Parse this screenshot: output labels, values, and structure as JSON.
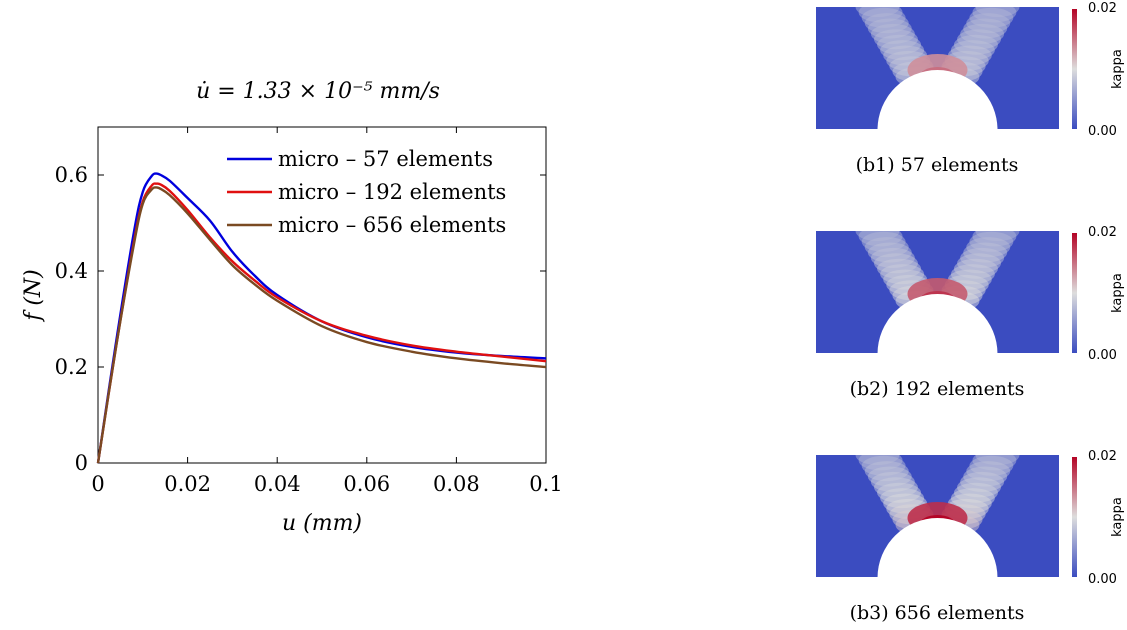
{
  "chart_data": [
    {
      "type": "line",
      "title": "u̇ = 1.33 × 10⁻⁵ mm/s",
      "xlabel": "u (mm)",
      "ylabel": "f (N)",
      "xlim": [
        0,
        0.1
      ],
      "ylim": [
        0,
        0.7
      ],
      "xticks": [
        "0",
        "0.02",
        "0.04",
        "0.06",
        "0.08",
        "0.1"
      ],
      "yticks": [
        "0",
        "0.2",
        "0.4",
        "0.6"
      ],
      "legend_position": "top-right",
      "grid": false,
      "series": [
        {
          "name": "micro – 57 elements",
          "color": "#0000dd",
          "x": [
            0,
            0.004,
            0.008,
            0.01,
            0.012,
            0.013,
            0.014,
            0.016,
            0.02,
            0.025,
            0.03,
            0.035,
            0.04,
            0.05,
            0.06,
            0.07,
            0.08,
            0.09,
            0.1
          ],
          "y": [
            0,
            0.25,
            0.48,
            0.565,
            0.598,
            0.603,
            0.6,
            0.588,
            0.552,
            0.505,
            0.44,
            0.39,
            0.35,
            0.295,
            0.262,
            0.242,
            0.23,
            0.223,
            0.218
          ]
        },
        {
          "name": "micro – 192 elements",
          "color": "#e01010",
          "x": [
            0,
            0.004,
            0.008,
            0.01,
            0.012,
            0.013,
            0.014,
            0.016,
            0.02,
            0.025,
            0.03,
            0.035,
            0.04,
            0.05,
            0.06,
            0.07,
            0.08,
            0.09,
            0.1
          ],
          "y": [
            0,
            0.24,
            0.46,
            0.545,
            0.578,
            0.582,
            0.58,
            0.567,
            0.527,
            0.47,
            0.42,
            0.38,
            0.345,
            0.295,
            0.265,
            0.245,
            0.232,
            0.222,
            0.212
          ]
        },
        {
          "name": "micro – 656 elements",
          "color": "#7a4a22",
          "x": [
            0,
            0.004,
            0.008,
            0.01,
            0.012,
            0.013,
            0.014,
            0.016,
            0.02,
            0.025,
            0.03,
            0.035,
            0.04,
            0.05,
            0.06,
            0.07,
            0.08,
            0.09,
            0.1
          ],
          "y": [
            0,
            0.24,
            0.455,
            0.54,
            0.57,
            0.574,
            0.571,
            0.558,
            0.52,
            0.465,
            0.412,
            0.372,
            0.338,
            0.285,
            0.252,
            0.232,
            0.218,
            0.208,
            0.2
          ]
        }
      ]
    },
    {
      "type": "heatmap",
      "panels": [
        {
          "caption": "(b1) 57 elements",
          "colorbar_label": "kappa",
          "ticks": [
            "0.02",
            "0.00"
          ],
          "peak": 0.45
        },
        {
          "caption": "(b2) 192 elements",
          "colorbar_label": "kappa",
          "ticks": [
            "0.02",
            "0.00"
          ],
          "peak": 0.75
        },
        {
          "caption": "(b3) 656 elements",
          "colorbar_label": "kappa",
          "ticks": [
            "0.02",
            "0.00"
          ],
          "peak": 1.0
        }
      ],
      "colormap": [
        "#3b4cc0",
        "#dddddd",
        "#b40426"
      ]
    }
  ]
}
